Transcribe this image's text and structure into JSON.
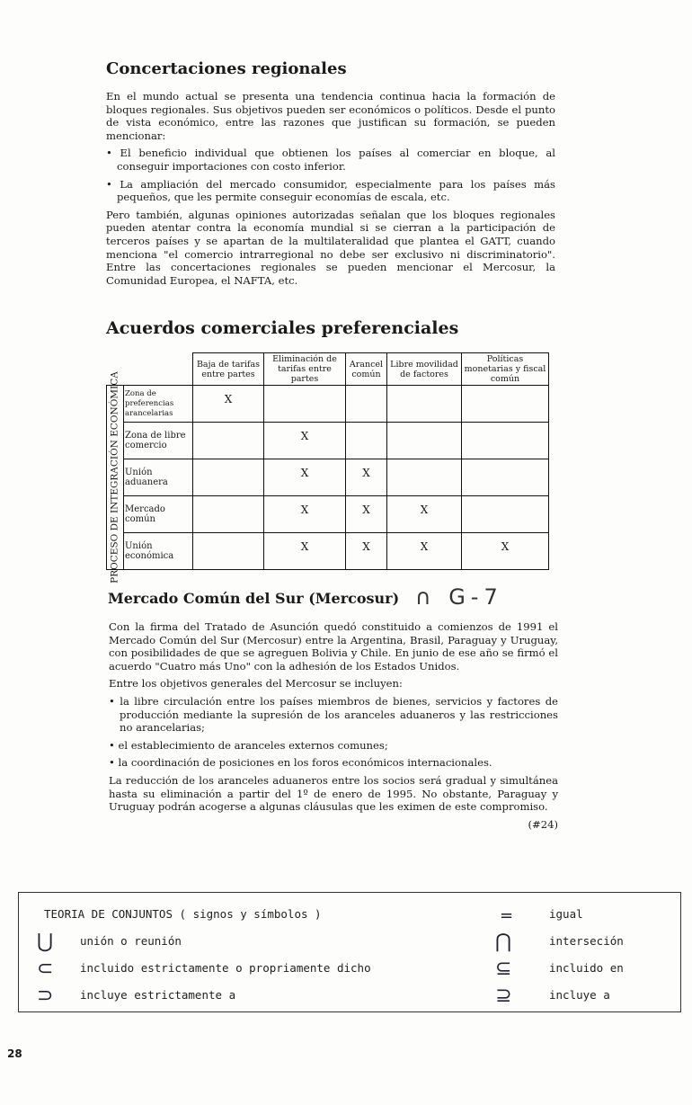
{
  "section1": {
    "title": "Concertaciones regionales",
    "intro": "En el mundo actual se presenta una tendencia continua hacia la formación de bloques regionales. Sus objetivos pueden ser económicos o políticos. Desde el punto de vista económico, entre las razones que justifican su formación, se pueden mencionar:",
    "bullets": [
      "El beneficio individual que obtienen los países al comerciar en bloque, al conseguir importaciones con costo inferior.",
      "La ampliación del mercado consumidor, especialmente para los países más pequeños, que les permite conseguir economías de escala, etc."
    ],
    "closing": "Pero también, algunas opiniones autorizadas señalan que los bloques regionales pueden atentar contra la economía mundial si se cierran a la participación de terceros países y se apartan de la multilateralidad que plantea el GATT, cuando menciona \"el comercio intrarregional no debe ser exclusivo ni discriminatorio\". Entre las concertaciones regionales se pueden mencionar el Mercosur, la Comunidad Europea, el NAFTA, etc."
  },
  "section2": {
    "title": "Acuerdos comerciales preferenciales",
    "table": {
      "side_label": "PROCESO DE INTEGRACIÓN ECONÓMICA",
      "columns": [
        "Baja de tarifas entre partes",
        "Eliminación de tarifas entre partes",
        "Arancel común",
        "Libre movilidad de factores",
        "Políticas monetarias y fiscal común"
      ],
      "rows": [
        {
          "label": "Zona de preferencias arancelarias",
          "cells": [
            "X",
            "",
            "",
            "",
            ""
          ]
        },
        {
          "label": "Zona de libre comercio",
          "cells": [
            "",
            "X",
            "",
            "",
            ""
          ]
        },
        {
          "label": "Unión aduanera",
          "cells": [
            "",
            "X",
            "X",
            "",
            ""
          ]
        },
        {
          "label": "Mercado común",
          "cells": [
            "",
            "X",
            "X",
            "X",
            ""
          ]
        },
        {
          "label": "Unión económica",
          "cells": [
            "",
            "X",
            "X",
            "X",
            "X"
          ]
        }
      ]
    }
  },
  "section3": {
    "title": "Mercado Común del Sur (Mercosur)",
    "handwritten_note": "∩ G-7",
    "p1": "Con la firma del Tratado de Asunción quedó constituido a comienzos de 1991 el Mercado Común del Sur (Mercosur) entre la Argentina, Brasil, Paraguay y Uruguay, con posibilidades de que se agreguen Bolivia y Chile. En junio de ese año se firmó el acuerdo \"Cuatro más Uno\" con la adhesión de los Estados Unidos.",
    "p2": "Entre los objetivos generales del Mercosur se incluyen:",
    "bullets": [
      "la libre circulación entre los países miembros de bienes, servicios y factores de producción mediante la supresión de los aranceles aduaneros y las restricciones no arancelarias;",
      "el establecimiento de aranceles externos comunes;",
      "la coordinación de posiciones en los foros económicos internacionales."
    ],
    "p3": "La reducción de los aranceles aduaneros entre los socios será gradual y simultánea hasta su eliminación a partir del 1º de enero de 1995. No obstante, Paraguay y Uruguay podrán acogerse a algunas cláusulas que les eximen de este compromiso.",
    "ref": "(#24)"
  },
  "symbols_box": {
    "title": "TEORIA DE CONJUNTOS  ( signos y símbolos )",
    "left": [
      {
        "symbol": "⋃",
        "label": "unión o reunión"
      },
      {
        "symbol": "⊂",
        "label": "incluido estrictamente o propriamente dicho"
      },
      {
        "symbol": "⊃",
        "label": "incluye estrictamente a"
      }
    ],
    "right": [
      {
        "symbol": "=",
        "label": "igual"
      },
      {
        "symbol": "⋂",
        "label": "interseción"
      },
      {
        "symbol": "⊆",
        "label": "incluido en"
      },
      {
        "symbol": "⊇",
        "label": "incluye a"
      }
    ]
  },
  "page_number": "28"
}
